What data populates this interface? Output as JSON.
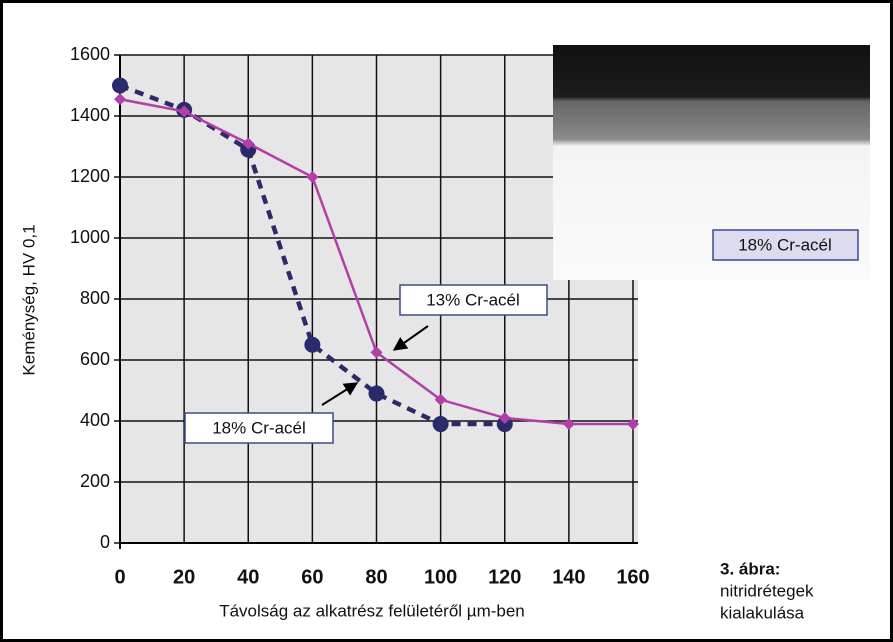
{
  "chart_data": {
    "type": "line",
    "ylabel": "Keménység, HV 0,1",
    "xlabel": "Távolság az alkatrész felületéről µm-ben",
    "series": [
      {
        "name": "18% Cr-acél",
        "color": "#2b2a6b",
        "style": "dotted",
        "marker": "circle",
        "x": [
          0,
          20,
          40,
          60,
          80,
          100,
          120
        ],
        "values": [
          1500,
          1420,
          1290,
          650,
          490,
          390,
          390
        ]
      },
      {
        "name": "13% Cr-acél",
        "color": "#b23ea8",
        "style": "solid",
        "marker": "diamond",
        "x": [
          0,
          20,
          40,
          60,
          80,
          100,
          120,
          140,
          160
        ],
        "values": [
          1455,
          1415,
          1310,
          1200,
          625,
          470,
          410,
          390,
          390
        ]
      }
    ],
    "xlim": [
      0,
      160
    ],
    "xticks": [
      0,
      20,
      40,
      60,
      80,
      100,
      120,
      140,
      160
    ],
    "ylim": [
      0,
      1600
    ],
    "yticks": [
      0,
      200,
      400,
      600,
      800,
      1000,
      1200,
      1400,
      1600
    ],
    "grid": true,
    "inset_label": "18% Cr-acél",
    "caption_title": "3. ábra:",
    "caption_lines": [
      "nitridrétegek",
      "kialakulása"
    ]
  }
}
